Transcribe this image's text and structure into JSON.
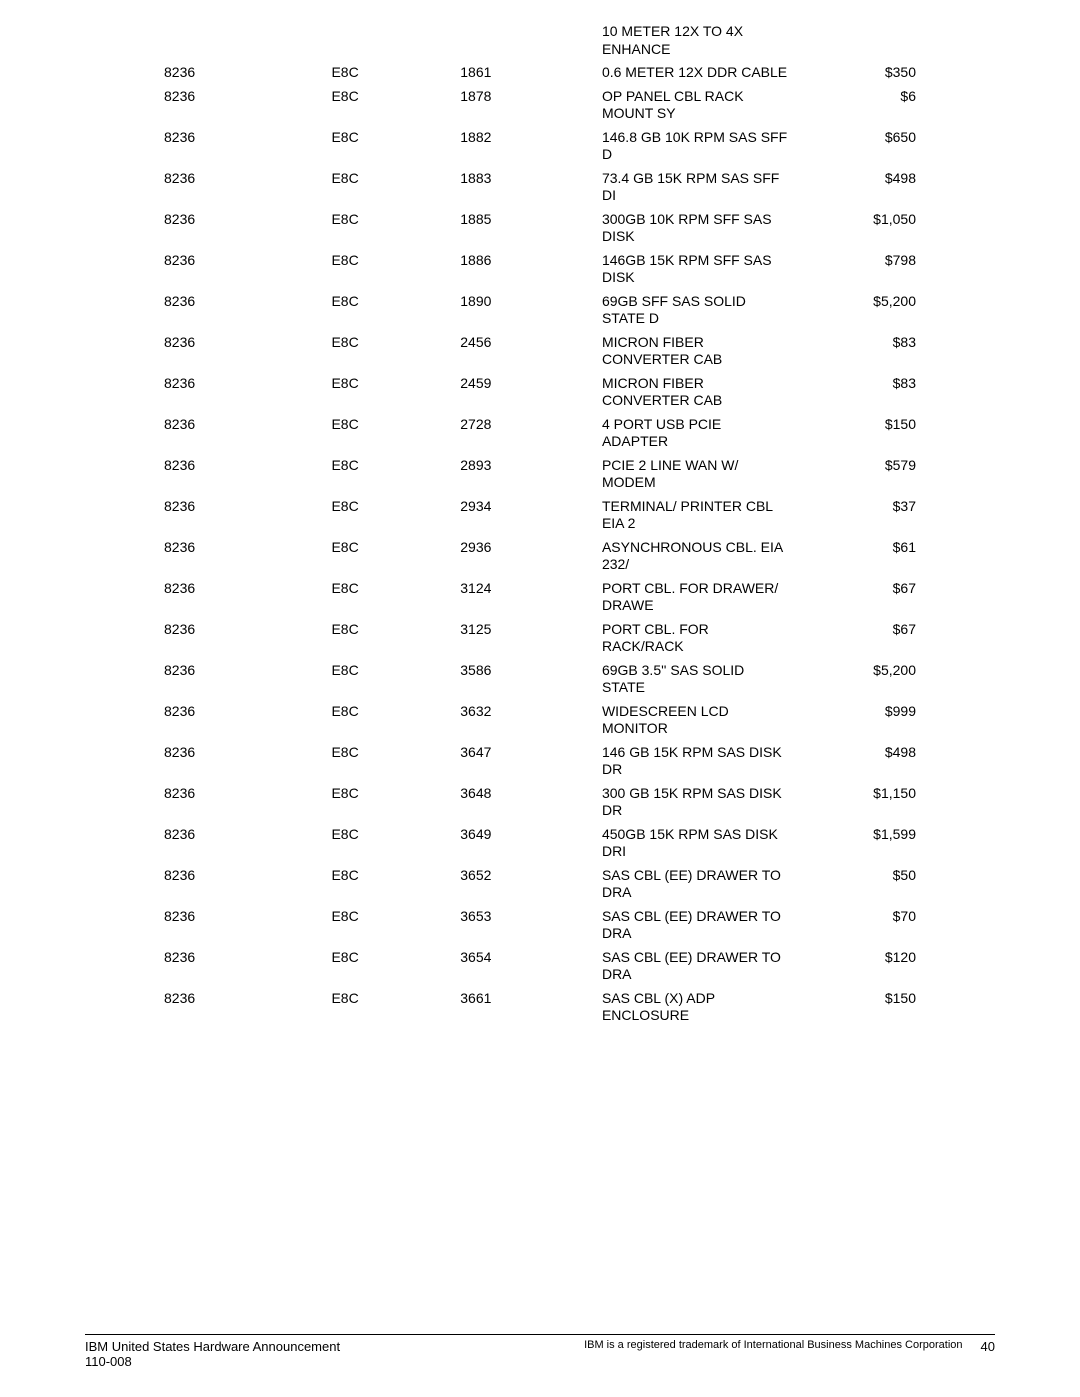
{
  "header_row": {
    "col4": "10 METER 12X TO 4X ENHANCE"
  },
  "rows": [
    {
      "c1": "8236",
      "c2": "E8C",
      "c3": "1861",
      "c4": "0.6 METER 12X DDR CABLE",
      "c5": "$350"
    },
    {
      "c1": "8236",
      "c2": "E8C",
      "c3": "1878",
      "c4": "OP PANEL CBL RACK MOUNT SY",
      "c5": "$6"
    },
    {
      "c1": "8236",
      "c2": "E8C",
      "c3": "1882",
      "c4": "146.8 GB 10K RPM SAS SFF D",
      "c5": "$650"
    },
    {
      "c1": "8236",
      "c2": "E8C",
      "c3": "1883",
      "c4": "73.4 GB 15K RPM SAS SFF DI",
      "c5": "$498"
    },
    {
      "c1": "8236",
      "c2": "E8C",
      "c3": "1885",
      "c4": "300GB 10K RPM SFF SAS DISK",
      "c5": "$1,050"
    },
    {
      "c1": "8236",
      "c2": "E8C",
      "c3": "1886",
      "c4": "146GB 15K RPM SFF SAS DISK",
      "c5": "$798"
    },
    {
      "c1": "8236",
      "c2": "E8C",
      "c3": "1890",
      "c4": "69GB SFF SAS SOLID STATE D",
      "c5": "$5,200"
    },
    {
      "c1": "8236",
      "c2": "E8C",
      "c3": "2456",
      "c4": "MICRON FIBER CONVERTER CAB",
      "c5": "$83"
    },
    {
      "c1": "8236",
      "c2": "E8C",
      "c3": "2459",
      "c4": "MICRON FIBER CONVERTER CAB",
      "c5": "$83"
    },
    {
      "c1": "8236",
      "c2": "E8C",
      "c3": "2728",
      "c4": "4 PORT USB PCIE ADAPTER",
      "c5": "$150"
    },
    {
      "c1": "8236",
      "c2": "E8C",
      "c3": "2893",
      "c4": "PCIE 2 LINE WAN W/ MODEM",
      "c5": "$579"
    },
    {
      "c1": "8236",
      "c2": "E8C",
      "c3": "2934",
      "c4": "TERMINAL/ PRINTER CBL EIA 2",
      "c5": "$37"
    },
    {
      "c1": "8236",
      "c2": "E8C",
      "c3": "2936",
      "c4": "ASYNCHRONOUS CBL. EIA 232/",
      "c5": "$61"
    },
    {
      "c1": "8236",
      "c2": "E8C",
      "c3": "3124",
      "c4": "PORT CBL. FOR DRAWER/ DRAWE",
      "c5": "$67"
    },
    {
      "c1": "8236",
      "c2": "E8C",
      "c3": "3125",
      "c4": "PORT CBL. FOR RACK/RACK",
      "c5": "$67"
    },
    {
      "c1": "8236",
      "c2": "E8C",
      "c3": "3586",
      "c4": "69GB 3.5'' SAS SOLID STATE",
      "c5": "$5,200"
    },
    {
      "c1": "8236",
      "c2": "E8C",
      "c3": "3632",
      "c4": "WIDESCREEN LCD MONITOR",
      "c5": "$999"
    },
    {
      "c1": "8236",
      "c2": "E8C",
      "c3": "3647",
      "c4": "146 GB 15K RPM SAS DISK DR",
      "c5": "$498"
    },
    {
      "c1": "8236",
      "c2": "E8C",
      "c3": "3648",
      "c4": "300 GB 15K RPM SAS DISK DR",
      "c5": "$1,150"
    },
    {
      "c1": "8236",
      "c2": "E8C",
      "c3": "3649",
      "c4": "450GB 15K RPM SAS DISK DRI",
      "c5": "$1,599"
    },
    {
      "c1": "8236",
      "c2": "E8C",
      "c3": "3652",
      "c4": "SAS CBL (EE) DRAWER TO DRA",
      "c5": "$50"
    },
    {
      "c1": "8236",
      "c2": "E8C",
      "c3": "3653",
      "c4": "SAS CBL (EE) DRAWER TO DRA",
      "c5": "$70"
    },
    {
      "c1": "8236",
      "c2": "E8C",
      "c3": "3654",
      "c4": "SAS CBL (EE) DRAWER TO DRA",
      "c5": "$120"
    },
    {
      "c1": "8236",
      "c2": "E8C",
      "c3": "3661",
      "c4": "SAS CBL (X) ADP ENCLOSURE",
      "c5": "$150"
    }
  ],
  "footer": {
    "left_line1": "IBM United States Hardware Announcement",
    "left_line2": "110-008",
    "trademark": "IBM is a registered trademark of International Business Machines Corporation",
    "page": "40"
  }
}
